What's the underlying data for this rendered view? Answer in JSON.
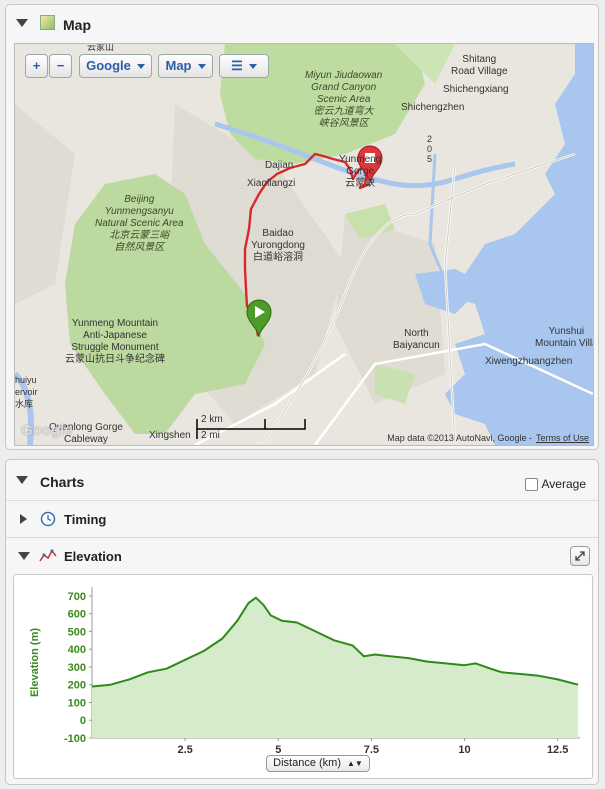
{
  "map_panel": {
    "title": "Map",
    "controls": {
      "zoom_in": "+",
      "zoom_out": "−",
      "provider": "Google",
      "map_type": "Map"
    },
    "labels": {
      "top_left": "云家山",
      "shitang": "Shitang\nRoad Village",
      "shichengxiang": "Shichengxiang",
      "shichengzhen": "Shichengzhen",
      "miyun": "Miyun Jiudaowan\nGrand Canyon\nScenic Area\n密云九道弯大\n峡谷风景区",
      "dajian": "Dajian",
      "xiaoliangzi": "Xiaoliangzi",
      "yunmeng_gorge": "Yunmeng\nGorge\n云蒙峡",
      "road_205": "2\n0\n5",
      "beijing_scenic": "Beijing\nYunmengsanyu\nNatural Scenic Area\n北京云蒙三峪\n自然风景区",
      "baidao": "Baidao\nYurongdong\n白道峪溶洞",
      "memorial": "Yunmeng Mountain\nAnti-Japanese\nStruggle Monument\n云蒙山抗日斗争纪念碑",
      "north_baiyancun": "North\nBaiyancun",
      "yunshui": "Yunshui\nMountain Villa",
      "xiwengzhuang": "Xiwengzhuangzhen",
      "huiyu": "huiyu\nervoir\n水库",
      "quanlong": "Quanlong Gorge\nCableway",
      "xingshen": "Xingshen",
      "scale_km": "2 km",
      "scale_mi": "2 mi",
      "google": "Google"
    },
    "attribution": "Map data ©2013 AutoNavi, Google -",
    "terms": "Terms of Use"
  },
  "charts_panel": {
    "title": "Charts",
    "average_label": "Average",
    "average_checked": false,
    "sections": [
      {
        "label": "Timing",
        "expanded": false,
        "icon": "clock-icon"
      },
      {
        "label": "Elevation",
        "expanded": true,
        "icon": "elevation-icon"
      }
    ],
    "x_selector": "Distance (km)"
  },
  "colors": {
    "route": "#d9272e",
    "elevation_line": "#2d8a16",
    "elevation_fill": "#d6ebcc",
    "axis_text": "#3a8a1f"
  },
  "chart_data": {
    "type": "area",
    "ylabel": "Elevation (m)",
    "xlabel": "Distance (km)",
    "xlim": [
      0,
      13.1
    ],
    "ylim": [
      -100,
      750
    ],
    "yticks": [
      -100,
      0,
      100,
      200,
      300,
      400,
      500,
      600,
      700
    ],
    "xticks": [
      2.5,
      5,
      7.5,
      10,
      12.5
    ],
    "series": [
      {
        "x": [
          0,
          0.5,
          1,
          1.5,
          2,
          2.5,
          3,
          3.5,
          3.9,
          4.2,
          4.4,
          4.6,
          4.8,
          5.1,
          5.5,
          6,
          6.5,
          7,
          7.3,
          7.6,
          8,
          8.5,
          9,
          9.5,
          10,
          10.3,
          10.7,
          11,
          11.5,
          12,
          12.5,
          13.05
        ],
        "y": [
          190,
          200,
          230,
          270,
          290,
          340,
          390,
          460,
          560,
          660,
          690,
          650,
          590,
          560,
          550,
          500,
          450,
          420,
          360,
          370,
          360,
          350,
          330,
          320,
          310,
          320,
          290,
          270,
          260,
          250,
          230,
          200
        ]
      }
    ]
  }
}
